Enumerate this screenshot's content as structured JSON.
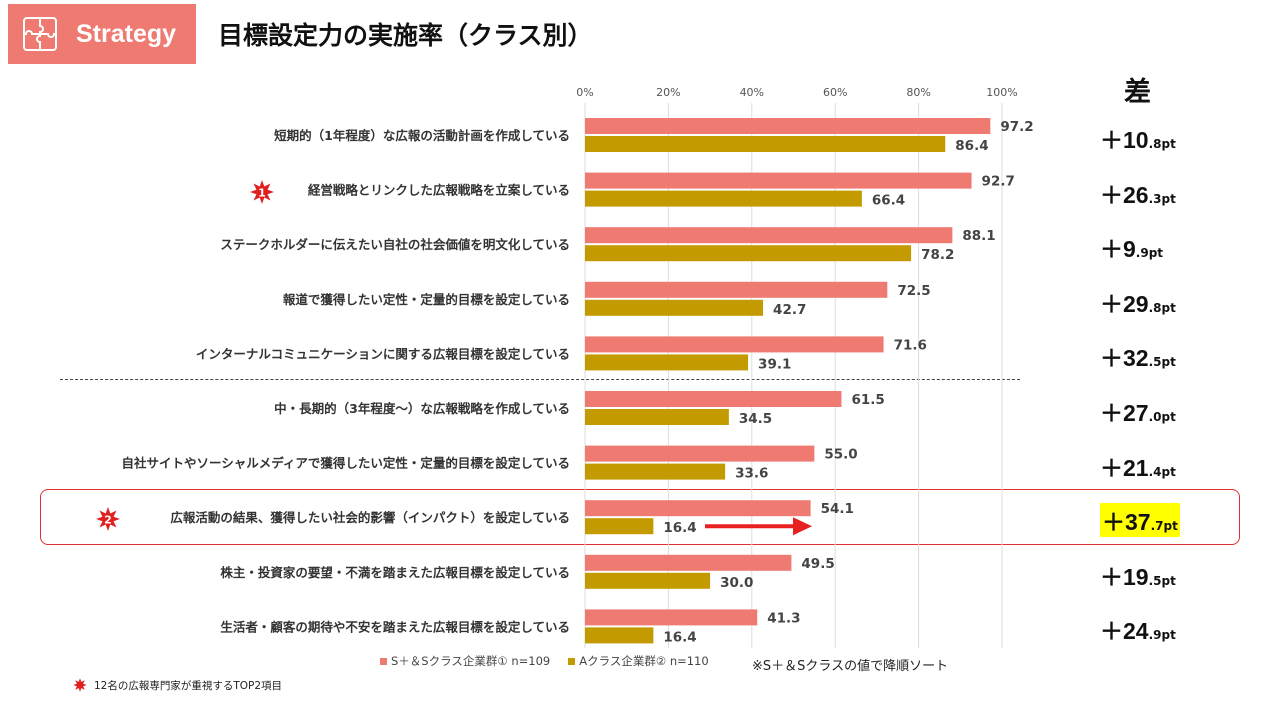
{
  "badge": {
    "label": "Strategy",
    "icon": "puzzle-icon"
  },
  "title": "目標設定力の実施率（クラス別）",
  "diff_header": "差",
  "colors": {
    "series1": "#ee7a72",
    "series2": "#c39a00",
    "highlight": "#ffff00",
    "accent": "#e02020"
  },
  "chart_data": {
    "type": "bar",
    "orientation": "horizontal",
    "categories": [
      "短期的（1年程度）な広報の活動計画を作成している",
      "経営戦略とリンクした広報戦略を立案している",
      "ステークホルダーに伝えたい自社の社会価値を明文化している",
      "報道で獲得したい定性・定量的目標を設定している",
      "インターナルコミュニケーションに関する広報目標を設定している",
      "中・長期的（3年程度～）な広報戦略を作成している",
      "自社サイトやソーシャルメディアで獲得したい定性・定量的目標を設定している",
      "広報活動の結果、獲得したい社会的影響（インパクト）を設定している",
      "株主・投資家の要望・不満を踏まえた広報目標を設定している",
      "生活者・顧客の期待や不安を踏まえた広報目標を設定している"
    ],
    "series": [
      {
        "name": "S＋＆Sクラス企業群① n=109",
        "values": [
          97.2,
          92.7,
          88.1,
          72.5,
          71.6,
          61.5,
          55.0,
          54.1,
          49.5,
          41.3
        ]
      },
      {
        "name": "Aクラス企業群② n=110",
        "values": [
          86.4,
          66.4,
          78.2,
          42.7,
          39.1,
          34.5,
          33.6,
          16.4,
          30.0,
          16.4
        ]
      }
    ],
    "value_labels": [
      [
        "97.2",
        "92.7",
        "88.1",
        "72.5",
        "71.6",
        "61.5",
        "55.0",
        "54.1",
        "49.5",
        "41.3"
      ],
      [
        "86.4",
        "66.4",
        "78.2",
        "42.7",
        "39.1",
        "34.5",
        "33.6",
        "16.4",
        "30.0",
        "16.4"
      ]
    ],
    "xlim": [
      0,
      100
    ],
    "xticks": [
      "0%",
      "20%",
      "40%",
      "60%",
      "80%",
      "100%"
    ],
    "grid": true,
    "legend": "bottom",
    "differences": [
      {
        "main": "＋10",
        "sub": ".8pt"
      },
      {
        "main": "＋26",
        "sub": ".3pt"
      },
      {
        "main": "＋9",
        "sub": ".9pt"
      },
      {
        "main": "＋29",
        "sub": ".8pt"
      },
      {
        "main": "＋32",
        "sub": ".5pt"
      },
      {
        "main": "＋27",
        "sub": ".0pt"
      },
      {
        "main": "＋21",
        "sub": ".4pt"
      },
      {
        "main": "＋37",
        "sub": ".7pt"
      },
      {
        "main": "＋19",
        "sub": ".5pt"
      },
      {
        "main": "＋24",
        "sub": ".9pt"
      }
    ],
    "highlighted_category_index": 7,
    "top2_markers": [
      {
        "category_index": 1,
        "label": "1"
      },
      {
        "category_index": 7,
        "label": "2"
      }
    ]
  },
  "legend": {
    "series1": "S＋＆Sクラス企業群① n=109",
    "series2": "Aクラス企業群② n=110"
  },
  "sort_note": "※S＋＆Sクラスの値で降順ソート",
  "footnote": "12名の広報専門家が重視するTOP2項目"
}
